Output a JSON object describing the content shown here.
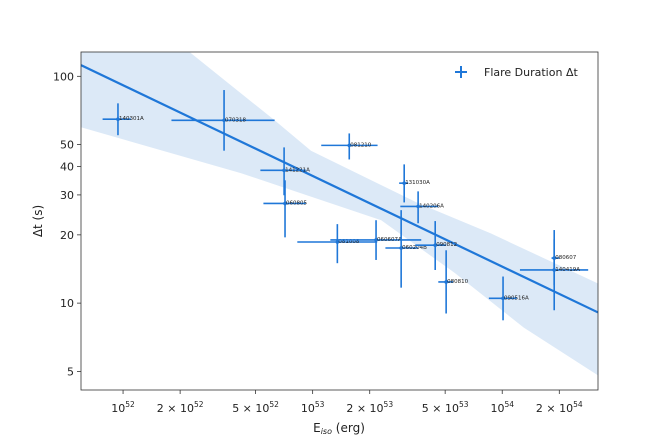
{
  "chart_data": {
    "type": "scatter",
    "title": "",
    "xlabel": {
      "main": "E",
      "sub": "iso",
      "unit": " (erg)"
    },
    "ylabel": "Δt (s)",
    "xscale": "log",
    "yscale": "log",
    "xlim": [
      6e+51,
      3.2e+54
    ],
    "ylim": [
      4.14,
      128
    ],
    "grid": false,
    "legend": {
      "position": "top-right",
      "label": "Flare Duration Δt"
    },
    "colors": {
      "points": "#1f77d8",
      "fit": "#1f77d8",
      "band": "#dce9f7"
    },
    "xticks": [
      {
        "value": 1e+52,
        "mant": "",
        "exp": "52"
      },
      {
        "value": 2e+52,
        "mant": "2 × ",
        "exp": "52"
      },
      {
        "value": 5e+52,
        "mant": "5 × ",
        "exp": "52"
      },
      {
        "value": 1e+53,
        "mant": "",
        "exp": "53"
      },
      {
        "value": 2e+53,
        "mant": "2 × ",
        "exp": "53"
      },
      {
        "value": 5e+53,
        "mant": "5 × ",
        "exp": "53"
      },
      {
        "value": 1e+54,
        "mant": "",
        "exp": "54"
      },
      {
        "value": 2e+54,
        "mant": "2 × ",
        "exp": "54"
      }
    ],
    "yticks": [
      5,
      10,
      20,
      30,
      40,
      50,
      100
    ],
    "series": [
      {
        "name": "Flare Duration Δt",
        "points": [
          {
            "label": "140301A",
            "E": 9.4e+51,
            "E_lo": 7.8e+51,
            "E_hi": 1.1e+52,
            "t": 64.7,
            "t_lo": 55,
            "t_hi": 76
          },
          {
            "label": "070318",
            "E": 3.41e+52,
            "E_lo": 1.8e+52,
            "E_hi": 6.3e+52,
            "t": 64,
            "t_lo": 47,
            "t_hi": 87
          },
          {
            "label": "141221A",
            "E": 7.07e+52,
            "E_lo": 5.3e+52,
            "E_hi": 9.2e+52,
            "t": 38.5,
            "t_lo": 29.9,
            "t_hi": 48.6
          },
          {
            "label": "060805",
            "E": 7.15e+52,
            "E_lo": 5.5e+52,
            "E_hi": 9.2e+52,
            "t": 27.5,
            "t_lo": 19.5,
            "t_hi": 34.8
          },
          {
            "label": "081210",
            "E": 1.56e+53,
            "E_lo": 1.11e+53,
            "E_hi": 2.2e+53,
            "t": 49.6,
            "t_lo": 43,
            "t_hi": 56
          },
          {
            "label": "131030A",
            "E": 3.04e+53,
            "E_lo": 2.86e+53,
            "E_hi": 3.19e+53,
            "t": 33.8,
            "t_lo": 27.8,
            "t_hi": 40.9
          },
          {
            "label": "140206A",
            "E": 3.6e+53,
            "E_lo": 2.9e+53,
            "E_hi": 4.6e+53,
            "t": 26.7,
            "t_lo": 22.5,
            "t_hi": 31.1
          },
          {
            "label": "081008",
            "E": 1.35e+53,
            "E_lo": 8.3e+52,
            "E_hi": 2.19e+53,
            "t": 18.6,
            "t_lo": 15,
            "t_hi": 22.3
          },
          {
            "label": "060607A",
            "E": 2.16e+53,
            "E_lo": 1.24e+53,
            "E_hi": 3.74e+53,
            "t": 19,
            "t_lo": 15.5,
            "t_hi": 23.2
          },
          {
            "label": "060204B",
            "E": 2.93e+53,
            "E_lo": 2.42e+53,
            "E_hi": 3.6e+53,
            "t": 17.5,
            "t_lo": 11.7,
            "t_hi": 25.7
          },
          {
            "label": "090812",
            "E": 4.43e+53,
            "E_lo": 3.48e+53,
            "E_hi": 5.06e+53,
            "t": 18,
            "t_lo": 14,
            "t_hi": 23
          },
          {
            "label": "080810",
            "E": 5.06e+53,
            "E_lo": 4.6e+53,
            "E_hi": 5.5e+53,
            "t": 12.4,
            "t_lo": 9.0,
            "t_hi": 17.1
          },
          {
            "label": "090516A",
            "E": 1.01e+54,
            "E_lo": 8.5e+53,
            "E_hi": 1.19e+54,
            "t": 10.5,
            "t_lo": 8.4,
            "t_hi": 13.1
          },
          {
            "label": "080607",
            "E": 1.88e+54,
            "E_lo": 1.82e+54,
            "E_hi": 2e+54,
            "t": 15.8,
            "t_lo": 12,
            "t_hi": 21
          },
          {
            "label": "140419A",
            "E": 1.88e+54,
            "E_lo": 1.24e+54,
            "E_hi": 2.84e+54,
            "t": 14,
            "t_lo": 9.3,
            "t_hi": 19.1
          }
        ]
      }
    ],
    "fit_line": [
      [
        6e+51,
        112
      ],
      [
        3.2e+54,
        9.1
      ]
    ],
    "confidence_band": {
      "upper": [
        [
          6e+51,
          250
        ],
        [
          2.24e+52,
          128
        ],
        [
          6.3e+52,
          64
        ],
        [
          9.8e+52,
          47
        ],
        [
          3.6e+53,
          27.6
        ],
        [
          8.7e+53,
          20.3
        ],
        [
          3.2e+54,
          12.2
        ]
      ],
      "lower": [
        [
          6e+51,
          59.6
        ],
        [
          4.2e+52,
          37.4
        ],
        [
          2.3e+53,
          23.2
        ],
        [
          5.6e+53,
          13.6
        ],
        [
          1.3e+54,
          7.8
        ],
        [
          3.2e+54,
          4.8
        ]
      ]
    }
  }
}
